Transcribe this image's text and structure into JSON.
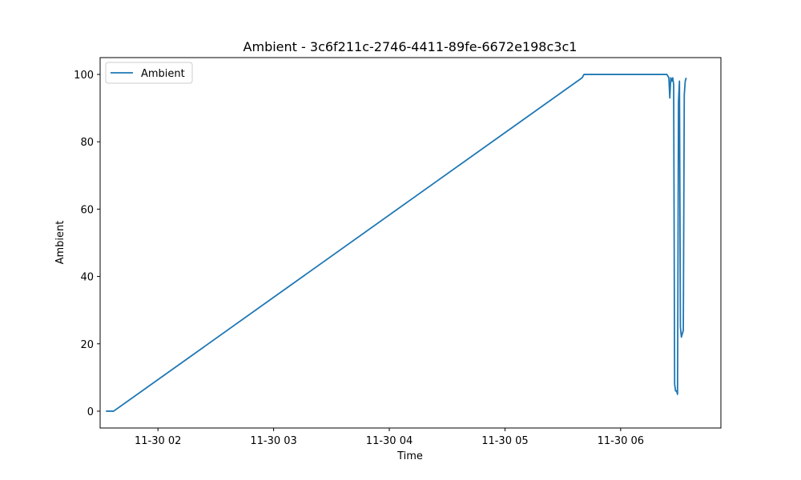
{
  "chart_data": {
    "type": "line",
    "title": "Ambient - 3c6f211c-2746-4411-89fe-6672e198c3c1",
    "xlabel": "Time",
    "ylabel": "Ambient",
    "x_date_prefix": "2023-11-30",
    "xlim": [
      "01:30",
      "06:52"
    ],
    "ylim": [
      -5,
      105
    ],
    "x_ticks": [
      {
        "value": "02:00",
        "label": "11-30 02"
      },
      {
        "value": "03:00",
        "label": "11-30 03"
      },
      {
        "value": "04:00",
        "label": "11-30 04"
      },
      {
        "value": "05:00",
        "label": "11-30 05"
      },
      {
        "value": "06:00",
        "label": "11-30 06"
      }
    ],
    "y_ticks": [
      0,
      20,
      40,
      60,
      80,
      100
    ],
    "grid": false,
    "legend": {
      "position": "top-left",
      "entries": [
        "Ambient"
      ]
    },
    "colors": {
      "Ambient": "#1f77b4"
    },
    "series": [
      {
        "name": "Ambient",
        "points": [
          {
            "x": "01:33",
            "y": 0
          },
          {
            "x": "01:37",
            "y": 0
          },
          {
            "x": "05:40",
            "y": 99
          },
          {
            "x": "05:41",
            "y": 100
          },
          {
            "x": "06:24",
            "y": 100
          },
          {
            "x": "06:25",
            "y": 99
          },
          {
            "x": "06:25.5",
            "y": 93
          },
          {
            "x": "06:26",
            "y": 99
          },
          {
            "x": "06:26.5",
            "y": 98
          },
          {
            "x": "06:27",
            "y": 99
          },
          {
            "x": "06:27.5",
            "y": 97
          },
          {
            "x": "06:28",
            "y": 8
          },
          {
            "x": "06:28.5",
            "y": 6
          },
          {
            "x": "06:29",
            "y": 6
          },
          {
            "x": "06:29.5",
            "y": 5
          },
          {
            "x": "06:30",
            "y": 92
          },
          {
            "x": "06:30.5",
            "y": 98
          },
          {
            "x": "06:31",
            "y": 25
          },
          {
            "x": "06:31.5",
            "y": 22
          },
          {
            "x": "06:32",
            "y": 23
          },
          {
            "x": "06:32.5",
            "y": 24
          },
          {
            "x": "06:33",
            "y": 94
          },
          {
            "x": "06:33.5",
            "y": 98
          },
          {
            "x": "06:34",
            "y": 99
          }
        ]
      }
    ]
  }
}
